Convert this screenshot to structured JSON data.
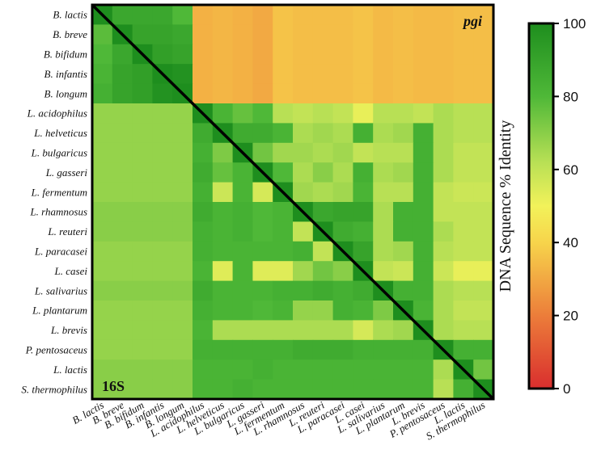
{
  "chart_data": {
    "type": "heatmap",
    "title": "",
    "upper_triangle_label": "pgi",
    "lower_triangle_label": "16S",
    "row_labels": [
      "B. lactis",
      "B. breve",
      "B. bifidum",
      "B. infantis",
      "B. longum",
      "L. acidophilus",
      "L. helveticus",
      "L. bulgaricus",
      "L. gasseri",
      "L. fermentum",
      "L. rhamnosus",
      "L. reuteri",
      "L. paracasei",
      "L. casei",
      "L. salivarius",
      "L. plantarum",
      "L. brevis",
      "P. pentosaceus",
      "L. lactis",
      "S. thermophilus"
    ],
    "col_labels": [
      "B. lactis",
      "B. breve",
      "B. bifidum",
      "B. infantis",
      "B. longum",
      "L. acidophilus",
      "L. helveticus",
      "L. bulgaricus",
      "L. gasseri",
      "L. fermentum",
      "L. rhamnosus",
      "L. reuteri",
      "L. paracasei",
      "L. casei",
      "L. salivarius",
      "L. plantarum",
      "L. brevis",
      "P. pentosaceus",
      "L. lactis",
      "S. thermophilus"
    ],
    "values": [
      [
        100,
        88,
        88,
        88,
        80,
        32,
        33,
        32,
        30,
        36,
        35,
        35,
        35,
        36,
        34,
        35,
        34,
        34,
        35,
        35
      ],
      [
        78,
        100,
        90,
        90,
        88,
        32,
        33,
        32,
        30,
        36,
        35,
        35,
        35,
        36,
        34,
        35,
        34,
        34,
        35,
        35
      ],
      [
        80,
        88,
        100,
        92,
        90,
        32,
        33,
        32,
        30,
        36,
        35,
        35,
        35,
        36,
        34,
        35,
        34,
        34,
        35,
        35
      ],
      [
        82,
        90,
        92,
        100,
        98,
        32,
        33,
        32,
        30,
        36,
        35,
        35,
        35,
        36,
        34,
        35,
        34,
        34,
        35,
        35
      ],
      [
        84,
        90,
        92,
        98,
        100,
        32,
        33,
        32,
        30,
        36,
        35,
        35,
        35,
        36,
        34,
        35,
        34,
        34,
        35,
        35
      ],
      [
        68,
        68,
        68,
        68,
        68,
        100,
        82,
        76,
        80,
        62,
        60,
        62,
        60,
        52,
        62,
        62,
        60,
        64,
        62,
        62
      ],
      [
        68,
        68,
        68,
        68,
        68,
        86,
        100,
        86,
        86,
        82,
        64,
        66,
        64,
        84,
        64,
        66,
        84,
        64,
        62,
        62
      ],
      [
        68,
        68,
        68,
        68,
        68,
        84,
        72,
        100,
        74,
        66,
        66,
        64,
        66,
        60,
        62,
        62,
        84,
        64,
        60,
        60
      ],
      [
        68,
        68,
        68,
        68,
        68,
        86,
        76,
        82,
        100,
        80,
        64,
        70,
        64,
        84,
        64,
        66,
        84,
        64,
        60,
        60
      ],
      [
        68,
        68,
        68,
        68,
        68,
        84,
        58,
        82,
        56,
        100,
        66,
        64,
        66,
        82,
        62,
        62,
        84,
        60,
        58,
        58
      ],
      [
        70,
        70,
        70,
        70,
        70,
        86,
        82,
        84,
        80,
        82,
        100,
        88,
        90,
        90,
        64,
        84,
        84,
        60,
        60,
        60
      ],
      [
        70,
        70,
        70,
        70,
        70,
        84,
        82,
        84,
        80,
        82,
        60,
        100,
        86,
        84,
        64,
        84,
        84,
        64,
        60,
        60
      ],
      [
        68,
        68,
        68,
        68,
        68,
        84,
        82,
        82,
        82,
        82,
        84,
        60,
        100,
        90,
        64,
        66,
        84,
        62,
        60,
        60
      ],
      [
        68,
        68,
        68,
        68,
        68,
        82,
        54,
        82,
        54,
        54,
        66,
        74,
        70,
        100,
        60,
        58,
        84,
        58,
        52,
        52
      ],
      [
        70,
        70,
        70,
        70,
        70,
        86,
        82,
        82,
        82,
        84,
        84,
        86,
        84,
        86,
        100,
        84,
        84,
        64,
        62,
        62
      ],
      [
        68,
        68,
        68,
        68,
        68,
        84,
        82,
        82,
        80,
        82,
        68,
        68,
        84,
        82,
        72,
        100,
        82,
        64,
        60,
        60
      ],
      [
        68,
        68,
        68,
        68,
        68,
        82,
        64,
        64,
        64,
        64,
        64,
        64,
        64,
        56,
        64,
        66,
        100,
        64,
        62,
        62
      ],
      [
        68,
        68,
        68,
        68,
        68,
        84,
        84,
        84,
        84,
        84,
        86,
        86,
        86,
        84,
        84,
        84,
        84,
        100,
        84,
        84
      ],
      [
        70,
        70,
        70,
        70,
        70,
        82,
        82,
        82,
        84,
        82,
        82,
        82,
        82,
        82,
        82,
        82,
        82,
        64,
        100,
        74
      ],
      [
        70,
        70,
        70,
        70,
        70,
        82,
        82,
        84,
        82,
        82,
        82,
        82,
        82,
        82,
        82,
        82,
        82,
        62,
        84,
        100
      ]
    ],
    "colorbar": {
      "label": "DNA Sequence % Identity",
      "min": 0,
      "max": 100,
      "ticks": [
        0,
        20,
        40,
        60,
        80,
        100
      ],
      "colors": [
        "#d92e2e",
        "#f5dd4b",
        "#1e8e1e"
      ]
    }
  }
}
